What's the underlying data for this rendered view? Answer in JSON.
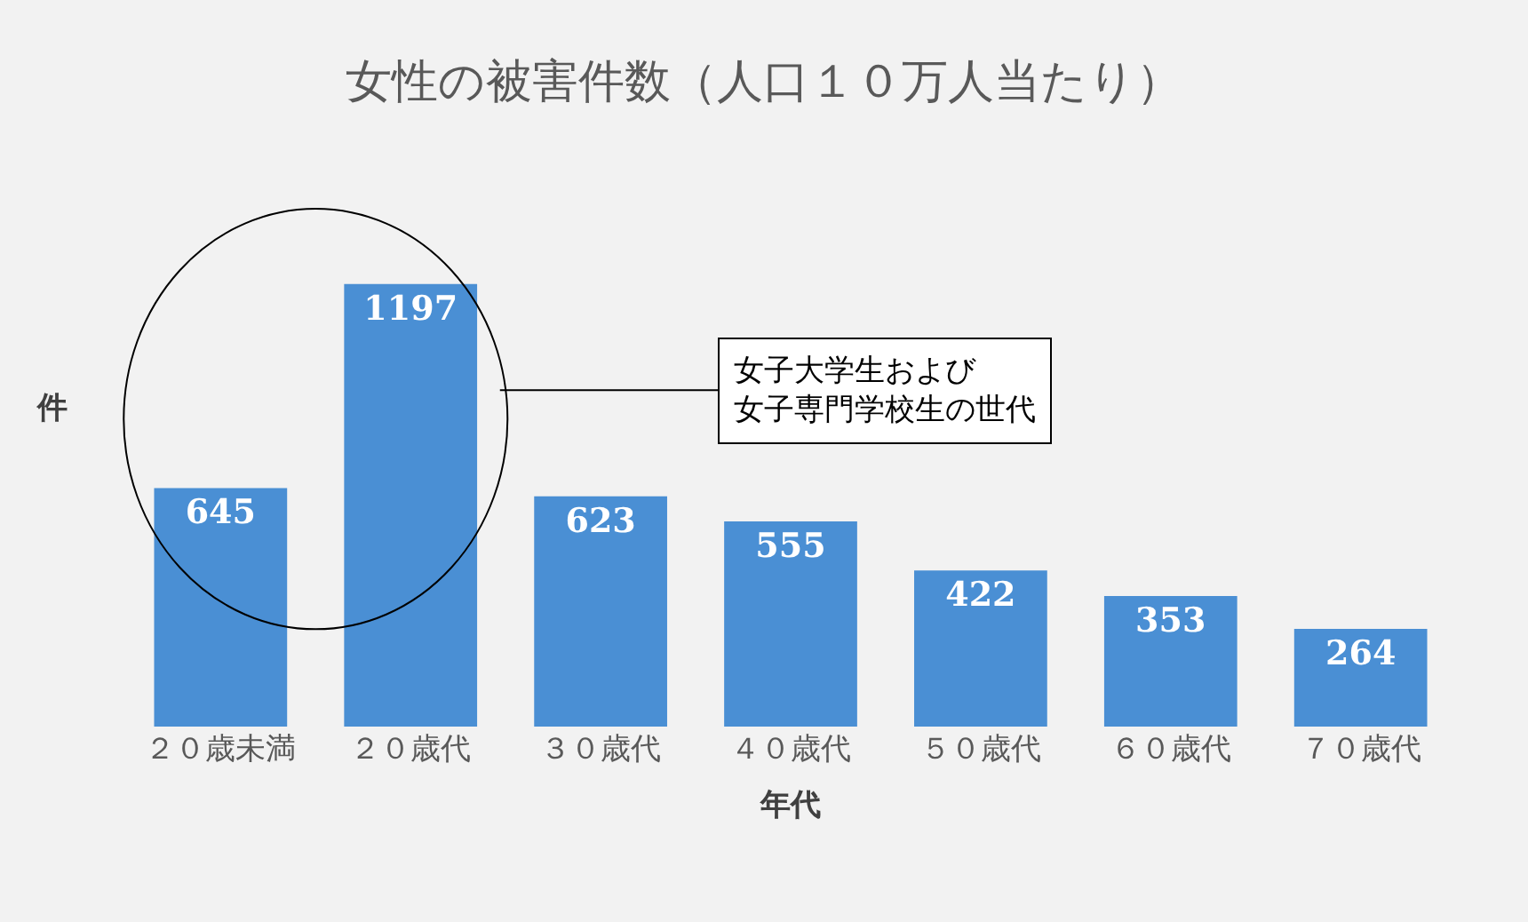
{
  "chart_data": {
    "type": "bar",
    "title": "女性の被害件数（人口１０万人当たり）",
    "xlabel": "年代",
    "ylabel": "件",
    "categories": [
      "２０歳未満",
      "２０歳代",
      "３０歳代",
      "４０歳代",
      "５０歳代",
      "６０歳代",
      "７０歳代"
    ],
    "values": [
      645,
      1197,
      623,
      555,
      422,
      353,
      264
    ],
    "color": "#4a8fd4",
    "data_labels": true,
    "annotations": [
      "女子大学生および",
      "女子専門学校生の世代"
    ]
  }
}
